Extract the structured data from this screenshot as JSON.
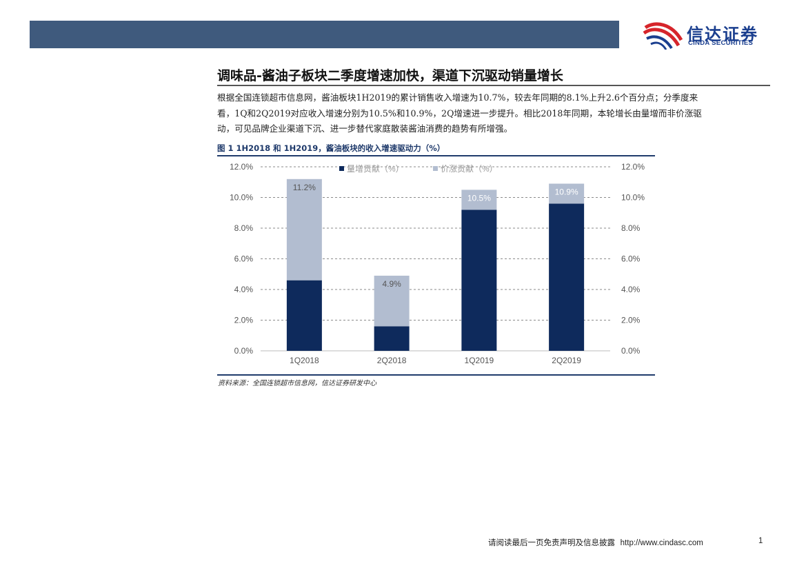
{
  "header": {
    "logo_cn": "信达证券",
    "logo_en": "CINDA SECURITIES",
    "brand_color": "#1b3f8f",
    "logo_red": "#d6252b",
    "bar_color": "#3f5a7d"
  },
  "section": {
    "title": "调味品-酱油子板块二季度增速加快，渠道下沉驱动销量增长",
    "paragraph_lines": [
      "根据全国连锁超市信息网，酱油板块1H2019的累计销售收入增速为10.7%，较去年同期的8.1%上升2.6个百分点；分季度来",
      "看，1Q和2Q2019对应收入增速分别为10.5%和10.9%，2Q增速进一步提升。相比2018年同期，本轮增长由量增而非价涨驱",
      "动，可见品牌企业渠道下沉、进一步替代家庭散装酱油消费的趋势有所增强。"
    ]
  },
  "figure": {
    "title": "图 1 1H2018 和 1H2019，酱油板块的收入增速驱动力（%）",
    "source": "资料来源：全国连锁超市信息网，信达证券研发中心"
  },
  "chart_data": {
    "type": "bar",
    "stacked": true,
    "categories": [
      "1Q2018",
      "2Q2018",
      "1Q2019",
      "2Q2019"
    ],
    "series": [
      {
        "name": "量增贡献（%）",
        "values": [
          4.6,
          1.6,
          9.2,
          9.6
        ],
        "color": "#0e2a5c"
      },
      {
        "name": "价涨贡献（%）",
        "values": [
          6.6,
          3.3,
          1.3,
          1.3
        ],
        "color": "#b2bdd0"
      }
    ],
    "totals": [
      "11.2%",
      "4.9%",
      "10.5%",
      "10.9%"
    ],
    "ylim": [
      0,
      12
    ],
    "yticks": [
      "0.0%",
      "2.0%",
      "4.0%",
      "6.0%",
      "8.0%",
      "10.0%",
      "12.0%"
    ],
    "secondary_axis": true,
    "grid": true,
    "legend": "top"
  },
  "footer": {
    "disclaimer": "请阅读最后一页免责声明及信息披露",
    "url": "http://www.cindasc.com",
    "page": "1"
  }
}
